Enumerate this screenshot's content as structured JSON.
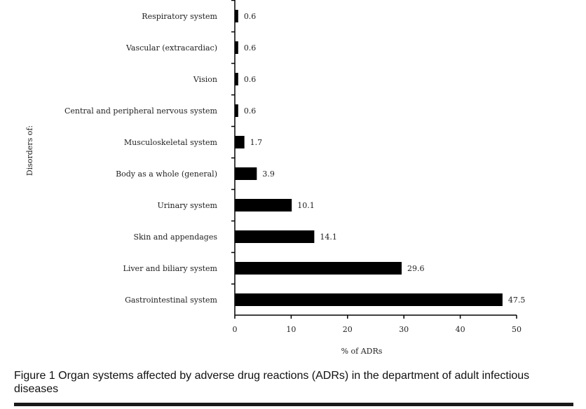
{
  "caption": "Figure 1 Organ systems affected by adverse drug reactions (ADRs) in the department of adult infectious diseases",
  "chart_data": {
    "type": "bar",
    "orientation": "horizontal",
    "categories": [
      "Respiratory system",
      "Vascular (extracardiac)",
      "Vision",
      "Central and peripheral nervous system",
      "Musculoskeletal system",
      "Body as a whole (general)",
      "Urinary system",
      "Skin and appendages",
      "Liver and biliary system",
      "Gastrointestinal system"
    ],
    "values": [
      0.6,
      0.6,
      0.6,
      0.6,
      1.7,
      3.9,
      10.1,
      14.1,
      29.6,
      47.5
    ],
    "value_labels": [
      "0.6",
      "0.6",
      "0.6",
      "0.6",
      "1.7",
      "3.9",
      "10.1",
      "14.1",
      "29.6",
      "47.5"
    ],
    "xlabel": "% of ADRs",
    "ylabel": "Disorders of:",
    "xlim": [
      0,
      50
    ],
    "xticks": [
      0,
      10,
      20,
      30,
      40,
      50
    ],
    "grid": false,
    "bar_color": "#000000"
  }
}
